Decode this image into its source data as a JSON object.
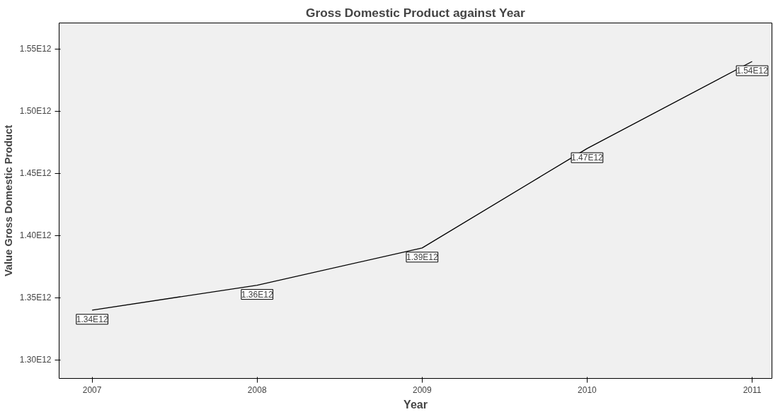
{
  "chart_data": {
    "type": "line",
    "title": "Gross Domestic Product against Year",
    "xlabel": "Year",
    "ylabel": "Value Gross Domestic Product",
    "x": [
      2007,
      2008,
      2009,
      2010,
      2011
    ],
    "series": [
      {
        "color": "#000000",
        "values": [
          1340000000000.0,
          1360000000000.0,
          1390000000000.0,
          1470000000000.0,
          1540000000000.0
        ],
        "value_labels": [
          "1.34E12",
          "1.36E12",
          "1.39E12",
          "1.47E12",
          "1.54E12"
        ]
      }
    ],
    "xlim": [
      2006.8,
      2011.12
    ],
    "xticks": [
      2007,
      2008,
      2009,
      2010,
      2011
    ],
    "ylim": [
      1285000000000.0,
      1571000000000.0
    ],
    "yticks": [
      {
        "value": 1300000000000.0,
        "label": "1.30E12"
      },
      {
        "value": 1350000000000.0,
        "label": "1.35E12"
      },
      {
        "value": 1400000000000.0,
        "label": "1.40E12"
      },
      {
        "value": 1450000000000.0,
        "label": "1.45E12"
      },
      {
        "value": 1500000000000.0,
        "label": "1.50E12"
      },
      {
        "value": 1550000000000.0,
        "label": "1.55E12"
      }
    ],
    "grid": false,
    "line_style": "solid"
  }
}
